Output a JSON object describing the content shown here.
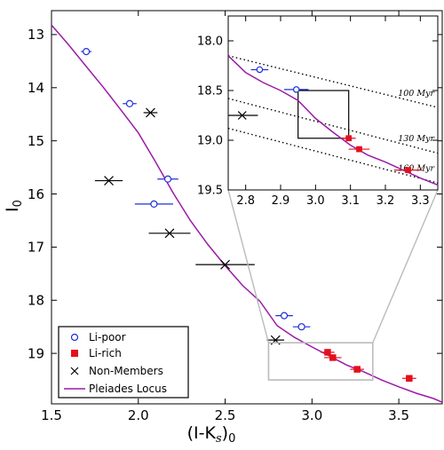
{
  "chart_data": [
    {
      "type": "scatter",
      "title": "",
      "xlabel": "(I-K",
      "xlabel_sub": "s",
      "xlabel_tail": ")",
      "xlabel_sub2": "0",
      "ylabel": "I",
      "ylabel_sub": "0",
      "xlim": [
        1.5,
        3.75
      ],
      "ylim": [
        19.95,
        12.55
      ],
      "y_inverted": true,
      "x_ticks": [
        "1.5",
        "2.0",
        "2.5",
        "3.0",
        "3.5"
      ],
      "x_tick_values": [
        1.5,
        2.0,
        2.5,
        3.0,
        3.5
      ],
      "y_ticks": [
        "13",
        "14",
        "15",
        "16",
        "17",
        "18",
        "19"
      ],
      "y_tick_values": [
        13,
        14,
        15,
        16,
        17,
        18,
        19
      ],
      "grid": false,
      "legend_position": "bottom-left",
      "legend": [
        {
          "label": "Li-poor",
          "marker": "open-circle",
          "color": "#1f2fd6"
        },
        {
          "label": "Li-rich",
          "marker": "filled-square",
          "color": "#e3101b"
        },
        {
          "label": "Non-Members",
          "marker": "x",
          "color": "#000000"
        },
        {
          "label": "Pleiades Locus",
          "marker": "line",
          "color": "#9b1aa8"
        }
      ],
      "series": [
        {
          "name": "Li-poor",
          "color": "#1f2fd6",
          "points": [
            {
              "x": 1.7,
              "y": 13.32,
              "xerr": 0.03
            },
            {
              "x": 1.95,
              "y": 14.3,
              "xerr": 0.04
            },
            {
              "x": 2.17,
              "y": 15.72,
              "xerr": 0.06
            },
            {
              "x": 2.09,
              "y": 16.19,
              "xerr": 0.11
            },
            {
              "x": 2.84,
              "y": 18.29,
              "xerr": 0.05
            },
            {
              "x": 2.94,
              "y": 18.5,
              "xerr": 0.05
            }
          ]
        },
        {
          "name": "Li-rich",
          "color": "#e3101b",
          "points": [
            {
              "x": 3.09,
              "y": 18.98,
              "xerr": 0.04
            },
            {
              "x": 3.12,
              "y": 19.08,
              "xerr": 0.05
            },
            {
              "x": 3.26,
              "y": 19.3,
              "xerr": 0.04
            },
            {
              "x": 3.56,
              "y": 19.47,
              "xerr": 0.04
            }
          ]
        },
        {
          "name": "Non-Members",
          "color": "#000000",
          "points": [
            {
              "x": 2.07,
              "y": 14.47,
              "xerr": 0.04
            },
            {
              "x": 1.83,
              "y": 15.75,
              "xerr": 0.08
            },
            {
              "x": 2.18,
              "y": 16.74,
              "xerr": 0.12
            },
            {
              "x": 2.5,
              "y": 17.33,
              "xerr": 0.17
            },
            {
              "x": 2.79,
              "y": 18.75,
              "xerr": 0.05
            }
          ]
        }
      ],
      "locus": {
        "name": "Pleiades Locus",
        "color": "#9b1aa8",
        "x": [
          1.5,
          1.6,
          1.7,
          1.8,
          1.9,
          2.0,
          2.1,
          2.2,
          2.3,
          2.4,
          2.5,
          2.6,
          2.7,
          2.8,
          2.9,
          3.0,
          3.1,
          3.2,
          3.3,
          3.4,
          3.5,
          3.6,
          3.7,
          3.75
        ],
        "y": [
          12.82,
          13.2,
          13.6,
          14.0,
          14.42,
          14.85,
          15.4,
          15.98,
          16.5,
          16.95,
          17.35,
          17.72,
          18.02,
          18.48,
          18.7,
          18.88,
          19.05,
          19.22,
          19.35,
          19.5,
          19.63,
          19.75,
          19.85,
          19.92
        ]
      },
      "zoom_box": {
        "x": [
          2.75,
          3.35
        ],
        "y": [
          18.8,
          19.5
        ]
      }
    },
    {
      "type": "scatter",
      "title": "",
      "xlim": [
        2.75,
        3.35
      ],
      "ylim": [
        19.5,
        17.75
      ],
      "y_inverted": true,
      "x_ticks": [
        "2.8",
        "2.9",
        "3.0",
        "3.1",
        "3.2",
        "3.3"
      ],
      "x_tick_values": [
        2.8,
        2.9,
        3.0,
        3.1,
        3.2,
        3.3
      ],
      "y_ticks": [
        "18.0",
        "18.5",
        "19.0",
        "19.5"
      ],
      "y_tick_values": [
        18.0,
        18.5,
        19.0,
        19.5
      ],
      "grid": false,
      "series": [
        {
          "name": "Li-poor",
          "color": "#1f2fd6",
          "points": [
            {
              "x": 2.84,
              "y": 18.29,
              "xerr": 0.025
            },
            {
              "x": 2.945,
              "y": 18.49,
              "xerr": 0.035
            }
          ]
        },
        {
          "name": "Li-rich",
          "color": "#e3101b",
          "points": [
            {
              "x": 3.095,
              "y": 18.98,
              "xerr": 0.02
            },
            {
              "x": 3.125,
              "y": 19.09,
              "xerr": 0.03
            },
            {
              "x": 3.265,
              "y": 19.3,
              "xerr": 0.04
            }
          ]
        },
        {
          "name": "Non-Members",
          "color": "#000000",
          "points": [
            {
              "x": 2.79,
              "y": 18.75,
              "xerr": 0.045
            }
          ]
        }
      ],
      "locus": {
        "color": "#9b1aa8",
        "x": [
          2.75,
          2.8,
          2.85,
          2.9,
          2.95,
          3.0,
          3.05,
          3.1,
          3.15,
          3.2,
          3.25,
          3.3,
          3.35
        ],
        "y": [
          18.15,
          18.32,
          18.42,
          18.5,
          18.6,
          18.78,
          18.92,
          19.05,
          19.15,
          19.22,
          19.3,
          19.38,
          19.45
        ]
      },
      "isochrones": [
        {
          "label": "100 Myr",
          "x": [
            2.75,
            3.35
          ],
          "y": [
            18.15,
            18.67
          ]
        },
        {
          "label": "130 Myr",
          "x": [
            2.75,
            3.35
          ],
          "y": [
            18.58,
            19.13
          ]
        },
        {
          "label": "160 Myr",
          "x": [
            2.75,
            3.35
          ],
          "y": [
            18.88,
            19.43
          ]
        }
      ],
      "region_box": {
        "x": [
          2.95,
          3.095
        ],
        "y": [
          18.5,
          18.98
        ]
      }
    }
  ]
}
